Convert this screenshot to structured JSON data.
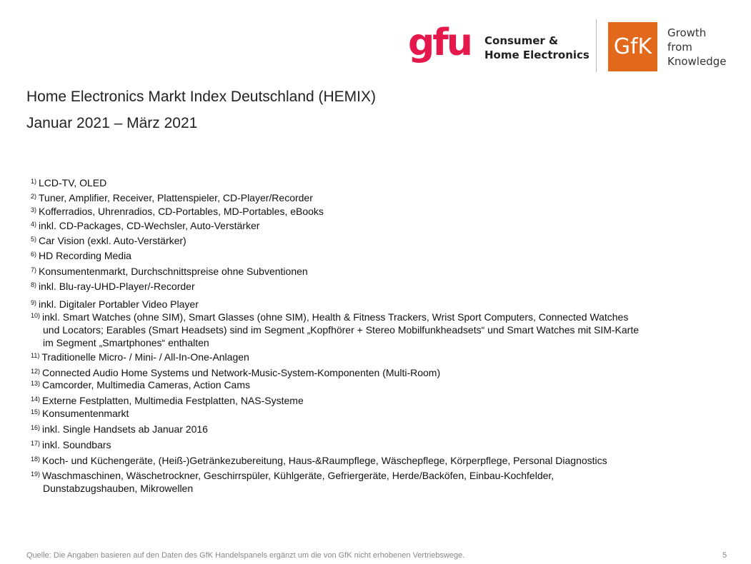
{
  "logo": {
    "gfu": "gfu",
    "gfu_line1": "Consumer &",
    "gfu_line2": "Home Electronics",
    "gfk": "GfK",
    "gfk_line1": "Growth",
    "gfk_line2": "from",
    "gfk_line3": "Knowledge",
    "gfu_color": "#e4184a",
    "gfk_color": "#e2691b"
  },
  "title": "Home Electronics Markt Index Deutschland (HEMIX)",
  "subtitle": "Januar 2021 – März 2021",
  "footnotes": [
    {
      "n": "1)",
      "lines": [
        "LCD-TV, OLED"
      ]
    },
    {
      "n": "2)",
      "lines": [
        "Tuner, Amplifier, Receiver, Plattenspieler, CD-Player/Recorder"
      ]
    },
    {
      "n": "3)",
      "lines": [
        "Kofferradios, Uhrenradios, CD-Portables, MD-Portables, eBooks"
      ]
    },
    {
      "n": "4)",
      "lines": [
        "inkl. CD-Packages, CD-Wechsler, Auto-Verstärker"
      ]
    },
    {
      "n": "5)",
      "lines": [
        "Car Vision (exkl. Auto-Verstärker)"
      ]
    },
    {
      "n": "6)",
      "lines": [
        "HD Recording Media"
      ]
    },
    {
      "n": "7)",
      "lines": [
        "Konsumentenmarkt, Durchschnittspreise ohne Subventionen"
      ]
    },
    {
      "n": "8)",
      "lines": [
        "inkl. Blu-ray-UHD-Player/-Recorder"
      ]
    },
    {
      "n": "9)",
      "lines": [
        "inkl. Digitaler Portabler Video Player"
      ]
    },
    {
      "n": "10)",
      "lines": [
        "inkl. Smart Watches (ohne SIM), Smart Glasses (ohne SIM), Health & Fitness Trackers, Wrist Sport Computers, Connected Watches",
        "und Locators; Earables (Smart Headsets) sind im Segment „Kopfhörer + Stereo Mobilfunkheadsets“ und Smart Watches mit SIM-Karte",
        "im Segment „Smartphones“ enthalten"
      ]
    },
    {
      "n": "11)",
      "lines": [
        "Traditionelle Micro- / Mini- / All-In-One-Anlagen"
      ]
    },
    {
      "n": "12)",
      "lines": [
        "Connected Audio Home Systems und Network-Music-System-Komponenten (Multi-Room)"
      ]
    },
    {
      "n": "13)",
      "lines": [
        "Camcorder, Multimedia Cameras, Action Cams"
      ]
    },
    {
      "n": "14)",
      "lines": [
        "Externe Festplatten, Multimedia Festplatten, NAS-Systeme"
      ]
    },
    {
      "n": "15)",
      "lines": [
        "Konsumentenmarkt"
      ]
    },
    {
      "n": "16)",
      "lines": [
        "inkl. Single Handsets ab Januar 2016"
      ]
    },
    {
      "n": "17)",
      "lines": [
        "inkl. Soundbars"
      ]
    },
    {
      "n": "18)",
      "lines": [
        "Koch- und Küchengeräte, (Heiß-)Getränkezubereitung, Haus-&Raumpflege, Wäschepflege, Körperpflege, Personal Diagnostics"
      ]
    },
    {
      "n": "19)",
      "lines": [
        "Waschmaschinen, Wäschetrockner, Geschirrspüler, Kühlgeräte, Gefriergeräte, Herde/Backöfen, Einbau-Kochfelder,",
        "Dunstabzugshauben, Mikrowellen"
      ]
    }
  ],
  "source": "Quelle: Die Angaben basieren auf den Daten des GfK Handelspanels ergänzt um die von GfK nicht erhobenen Vertriebswege.",
  "page_number": "5"
}
